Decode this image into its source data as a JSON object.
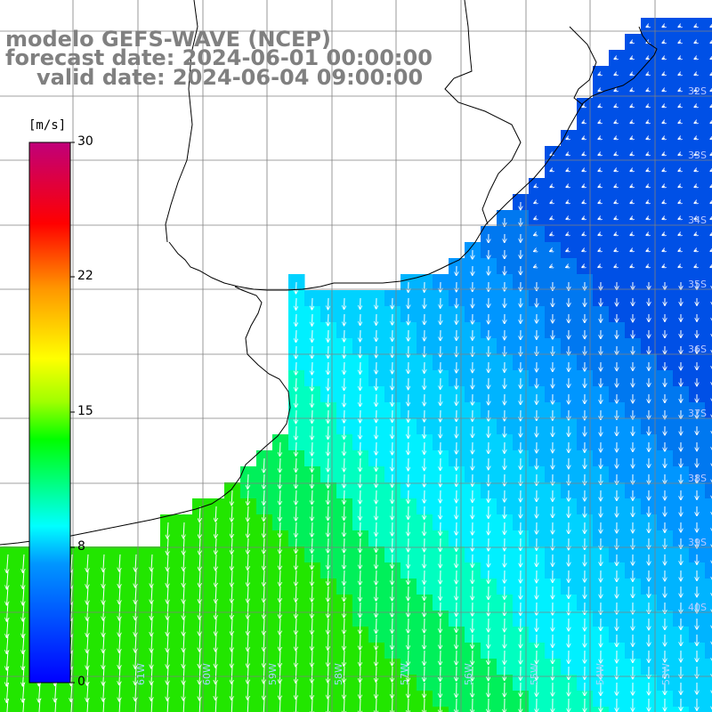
{
  "title": {
    "model": "modelo GEFS-WAVE (NCEP)",
    "forecast": "forecast date: 2024-06-01 00:00:00",
    "valid": "valid date: 2024-06-04 09:00:00"
  },
  "colorbar": {
    "units": "[m/s]",
    "ticks": [
      "30",
      "22",
      "15",
      "8",
      "0"
    ],
    "tick_values": [
      30,
      22,
      15,
      8,
      0
    ],
    "range": [
      0,
      30
    ],
    "colors": [
      "#0000ff",
      "#00c8ff",
      "#00ffff",
      "#00ff00",
      "#c8ff00",
      "#ffff00",
      "#ff8000",
      "#ff0000",
      "#c00080"
    ]
  },
  "grid": {
    "lat_labels": [
      "32S",
      "33S",
      "34S",
      "35S",
      "36S",
      "37S",
      "38S",
      "39S",
      "40S"
    ],
    "lon_labels": [
      "61W",
      "60W",
      "59W",
      "58W",
      "57W",
      "56W",
      "55W",
      "54W",
      "53W"
    ]
  },
  "colors": {
    "land": "#ffffff",
    "coast": "#000000",
    "grid": "#808080",
    "arrows": "#ffffff",
    "title": "#808080"
  }
}
